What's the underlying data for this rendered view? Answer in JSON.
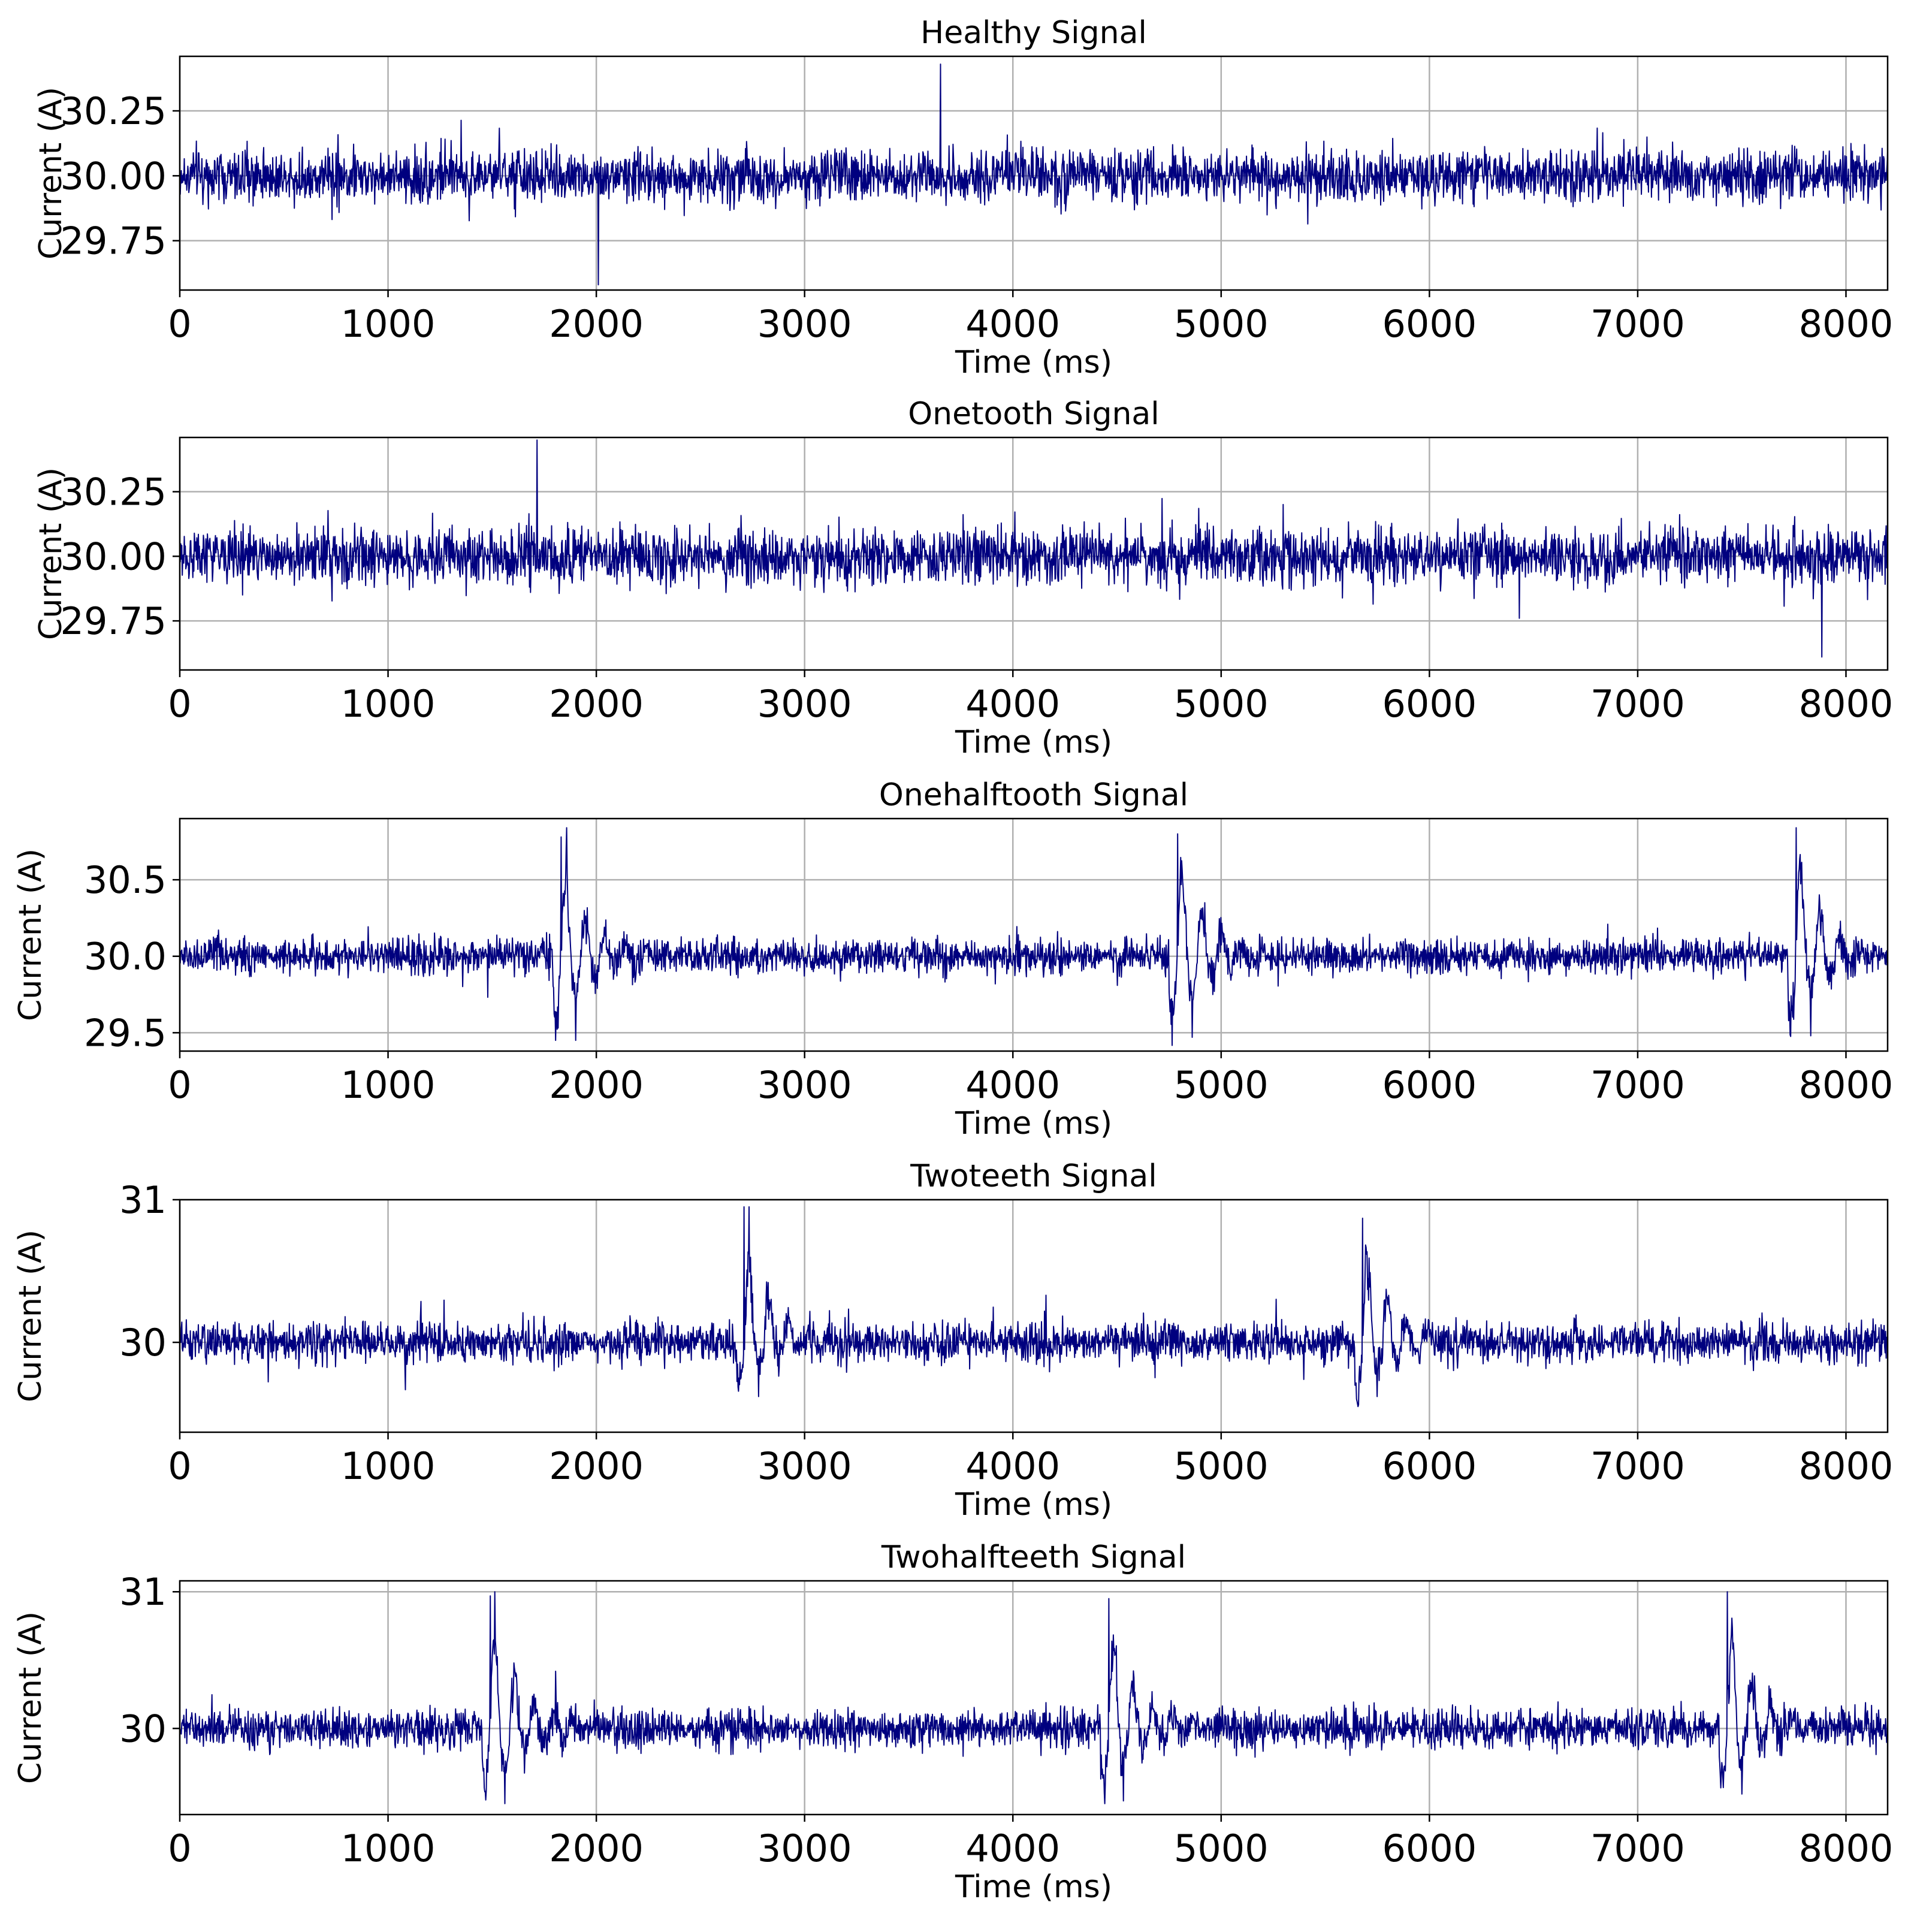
{
  "chart_data": [
    {
      "type": "line",
      "title": "Healthy Signal",
      "xlabel": "Time (ms)",
      "ylabel": "Current (A)",
      "xlim": [
        0,
        8200
      ],
      "ylim": [
        29.56,
        30.46
      ],
      "xticks": [
        0,
        1000,
        2000,
        3000,
        4000,
        5000,
        6000,
        7000,
        8000
      ],
      "xtick_labels": [
        "0",
        "1000",
        "2000",
        "3000",
        "4000",
        "5000",
        "6000",
        "7000",
        "8000"
      ],
      "yticks": [
        29.75,
        30.0,
        30.25
      ],
      "ytick_labels": [
        "29.75",
        "30.00",
        "30.25"
      ],
      "grid": true,
      "color": "#00007f",
      "series": [
        {
          "mean": 30.0,
          "band_amplitude": 0.16,
          "envelope_period_ms": 490,
          "spikes": [],
          "min": 29.58,
          "max": 30.43
        }
      ]
    },
    {
      "type": "line",
      "title": "Onetooth Signal",
      "xlabel": "Time (ms)",
      "ylabel": "Current (A)",
      "xlim": [
        0,
        8200
      ],
      "ylim": [
        29.56,
        30.46
      ],
      "xticks": [
        0,
        1000,
        2000,
        3000,
        4000,
        5000,
        6000,
        7000,
        8000
      ],
      "xtick_labels": [
        "0",
        "1000",
        "2000",
        "3000",
        "4000",
        "5000",
        "6000",
        "7000",
        "8000"
      ],
      "yticks": [
        29.75,
        30.0,
        30.25
      ],
      "ytick_labels": [
        "29.75",
        "30.00",
        "30.25"
      ],
      "grid": true,
      "color": "#00007f",
      "series": [
        {
          "mean": 30.0,
          "band_amplitude": 0.17,
          "envelope_period_ms": 500,
          "spikes": [],
          "min": 29.61,
          "max": 30.45
        }
      ]
    },
    {
      "type": "line",
      "title": "Onehalftooth Signal",
      "xlabel": "Time (ms)",
      "ylabel": "Current (A)",
      "xlim": [
        0,
        8200
      ],
      "ylim": [
        29.38,
        30.9
      ],
      "xticks": [
        0,
        1000,
        2000,
        3000,
        4000,
        5000,
        6000,
        7000,
        8000
      ],
      "xtick_labels": [
        "0",
        "1000",
        "2000",
        "3000",
        "4000",
        "5000",
        "6000",
        "7000",
        "8000"
      ],
      "yticks": [
        29.5,
        30.0,
        30.5
      ],
      "ytick_labels": [
        "29.5",
        "30.0",
        "30.5"
      ],
      "grid": true,
      "color": "#00007f",
      "series": [
        {
          "mean": 30.0,
          "band_amplitude": 0.18,
          "envelope_period_ms": 480,
          "spikes": [
            {
              "t": 1830,
              "peak": 30.78,
              "trough": 29.45
            },
            {
              "t": 4790,
              "peak": 30.8,
              "trough": 29.47
            },
            {
              "t": 7760,
              "peak": 30.84,
              "trough": 29.48
            }
          ],
          "min": 29.45,
          "max": 30.84
        }
      ]
    },
    {
      "type": "line",
      "title": "Twoteeth Signal",
      "xlabel": "Time (ms)",
      "ylabel": "Current (A)",
      "xlim": [
        0,
        8200
      ],
      "ylim": [
        29.37,
        31.0
      ],
      "xticks": [
        0,
        1000,
        2000,
        3000,
        4000,
        5000,
        6000,
        7000,
        8000
      ],
      "xtick_labels": [
        "0",
        "1000",
        "2000",
        "3000",
        "4000",
        "5000",
        "6000",
        "7000",
        "8000"
      ],
      "yticks": [
        30,
        31
      ],
      "ytick_labels": [
        "30",
        "31"
      ],
      "grid": true,
      "color": "#00007f",
      "series": [
        {
          "mean": 30.0,
          "band_amplitude": 0.22,
          "envelope_period_ms": 490,
          "spikes": [
            {
              "t": 2710,
              "peak": 30.95,
              "trough": 29.62
            },
            {
              "t": 5680,
              "peak": 30.87,
              "trough": 29.62
            }
          ],
          "min": 29.55,
          "max": 30.95
        }
      ]
    },
    {
      "type": "line",
      "title": "Twohalfteeth Signal",
      "xlabel": "Time (ms)",
      "ylabel": "Current (A)",
      "xlim": [
        0,
        8200
      ],
      "ylim": [
        29.37,
        31.08
      ],
      "xticks": [
        0,
        1000,
        2000,
        3000,
        4000,
        5000,
        6000,
        7000,
        8000
      ],
      "xtick_labels": [
        "0",
        "1000",
        "2000",
        "3000",
        "4000",
        "5000",
        "6000",
        "7000",
        "8000"
      ],
      "yticks": [
        30,
        31
      ],
      "ytick_labels": [
        "30",
        "31"
      ],
      "grid": true,
      "color": "#00007f",
      "series": [
        {
          "mean": 30.0,
          "band_amplitude": 0.22,
          "envelope_period_ms": 490,
          "spikes": [
            {
              "t": 1490,
              "peak": 30.97,
              "trough": 29.45
            },
            {
              "t": 4460,
              "peak": 30.95,
              "trough": 29.47
            },
            {
              "t": 7430,
              "peak": 31.0,
              "trough": 29.52
            }
          ],
          "min": 29.45,
          "max": 31.0
        }
      ]
    }
  ]
}
